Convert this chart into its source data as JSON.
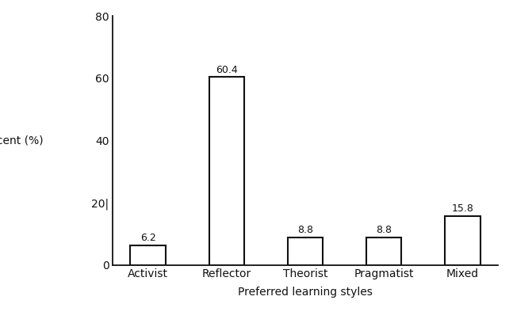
{
  "categories": [
    "Activist",
    "Reflector",
    "Theorist",
    "Pragmatist",
    "Mixed"
  ],
  "values": [
    6.2,
    60.4,
    8.8,
    8.8,
    15.8
  ],
  "bar_color": "#ffffff",
  "bar_edgecolor": "#111111",
  "bar_linewidth": 1.5,
  "xlabel": "Preferred learning styles",
  "ylabel": "Percent (%)",
  "ylim": [
    0,
    80
  ],
  "yticks": [
    0,
    20,
    40,
    60,
    80
  ],
  "ytick_labels": [
    "0",
    "20|",
    "40",
    "60",
    "80"
  ],
  "xlabel_fontsize": 10,
  "ylabel_fontsize": 10,
  "tick_fontsize": 10,
  "annotation_fontsize": 9,
  "background_color": "#ffffff",
  "bar_width": 0.45
}
